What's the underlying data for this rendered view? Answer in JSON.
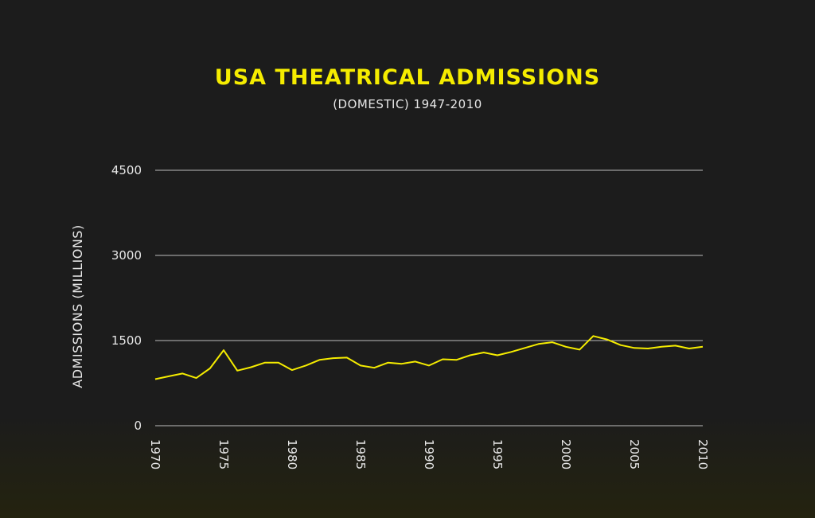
{
  "colors": {
    "accent": "#f5ec00",
    "text": "#e6e6e6",
    "grid": "#bdbdbd",
    "background": "#1c1c1c"
  },
  "chart_data": {
    "type": "line",
    "title": "USA THEATRICAL ADMISSIONS",
    "subtitle": "(DOMESTIC) 1947-2010",
    "xlabel": "",
    "ylabel": "ADMISSIONS (MILLIONS)",
    "xlim": [
      1970,
      2010
    ],
    "ylim": [
      0,
      4500
    ],
    "yticks": [
      "0",
      "1500",
      "3000",
      "4500"
    ],
    "xticks": [
      "1970",
      "1975",
      "1980",
      "1985",
      "1990",
      "1995",
      "2000",
      "2005",
      "2010"
    ],
    "grid": true,
    "series": [
      {
        "x": [
          1970,
          1971,
          1972,
          1973,
          1974,
          1975,
          1976,
          1977,
          1978,
          1979,
          1980,
          1981,
          1982,
          1983,
          1984,
          1985,
          1986,
          1987,
          1988,
          1989,
          1990,
          1991,
          1992,
          1993,
          1994,
          1995,
          1996,
          1997,
          1998,
          1999,
          2000,
          2001,
          2002,
          2003,
          2004,
          2005,
          2006,
          2007,
          2008,
          2009,
          2010
        ],
        "y": [
          820,
          870,
          920,
          840,
          1010,
          1330,
          970,
          1030,
          1110,
          1110,
          980,
          1060,
          1160,
          1190,
          1200,
          1060,
          1020,
          1110,
          1090,
          1130,
          1060,
          1170,
          1160,
          1240,
          1290,
          1240,
          1300,
          1370,
          1440,
          1470,
          1390,
          1340,
          1580,
          1520,
          1420,
          1370,
          1360,
          1390,
          1410,
          1360,
          1390
        ]
      }
    ]
  }
}
